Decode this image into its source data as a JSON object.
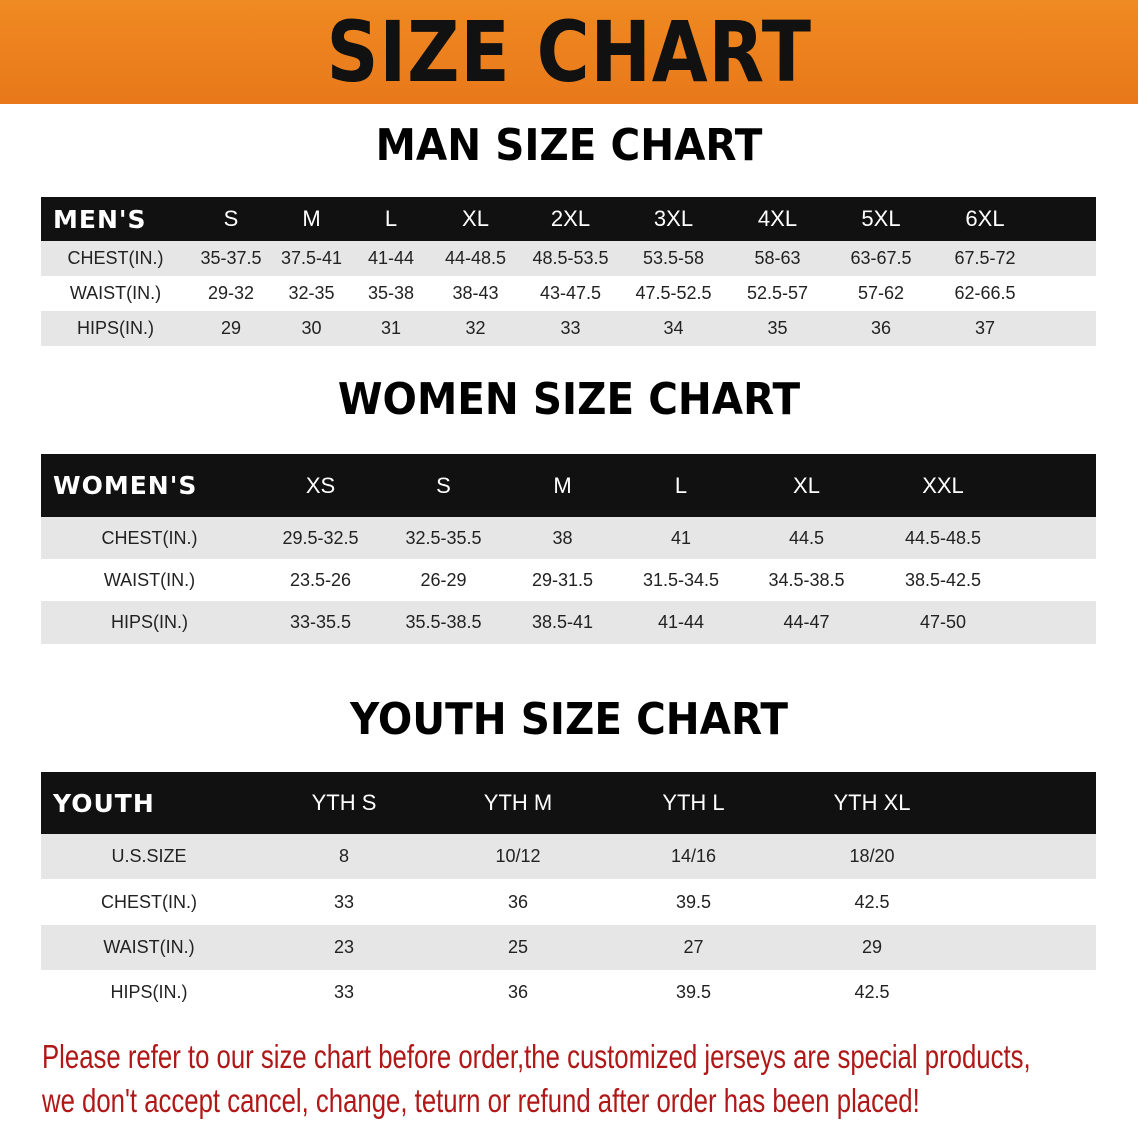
{
  "banner": {
    "title": "SIZE CHART",
    "color": "#ee8420"
  },
  "men": {
    "title": "MAN SIZE CHART",
    "header": [
      "MEN'S",
      "S",
      "M",
      "L",
      "XL",
      "2XL",
      "3XL",
      "4XL",
      "5XL",
      "6XL"
    ],
    "rows": [
      [
        "CHEST(IN.)",
        "35-37.5",
        "37.5-41",
        "41-44",
        "44-48.5",
        "48.5-53.5",
        "53.5-58",
        "58-63",
        "63-67.5",
        "67.5-72"
      ],
      [
        "WAIST(IN.)",
        "29-32",
        "32-35",
        "35-38",
        "38-43",
        "43-47.5",
        "47.5-52.5",
        "52.5-57",
        "57-62",
        "62-66.5"
      ],
      [
        "HIPS(IN.)",
        "29",
        "30",
        "31",
        "32",
        "33",
        "34",
        "35",
        "36",
        "37"
      ]
    ]
  },
  "women": {
    "title": "WOMEN SIZE CHART",
    "header": [
      "WOMEN'S",
      "XS",
      "S",
      "M",
      "L",
      "XL",
      "XXL"
    ],
    "rows": [
      [
        "CHEST(IN.)",
        "29.5-32.5",
        "32.5-35.5",
        "38",
        "41",
        "44.5",
        "44.5-48.5"
      ],
      [
        "WAIST(IN.)",
        "23.5-26",
        "26-29",
        "29-31.5",
        "31.5-34.5",
        "34.5-38.5",
        "38.5-42.5"
      ],
      [
        "HIPS(IN.)",
        "33-35.5",
        "35.5-38.5",
        "38.5-41",
        "41-44",
        "44-47",
        "47-50"
      ]
    ]
  },
  "youth": {
    "title": "YOUTH SIZE CHART",
    "header": [
      "YOUTH",
      "YTH S",
      "YTH M",
      "YTH L",
      "YTH XL"
    ],
    "rows": [
      [
        "U.S.SIZE",
        "8",
        "10/12",
        "14/16",
        "18/20"
      ],
      [
        "CHEST(IN.)",
        "33",
        "36",
        "39.5",
        "42.5"
      ],
      [
        "WAIST(IN.)",
        "23",
        "25",
        "27",
        "29"
      ],
      [
        "HIPS(IN.)",
        "33",
        "36",
        "39.5",
        "42.5"
      ]
    ]
  },
  "footer": {
    "line1": "Please refer to our size chart before order,the customized jerseys are special products,",
    "line2": "we don't accept cancel, change, teturn or refund after order has been placed!",
    "color": "#b01818"
  }
}
